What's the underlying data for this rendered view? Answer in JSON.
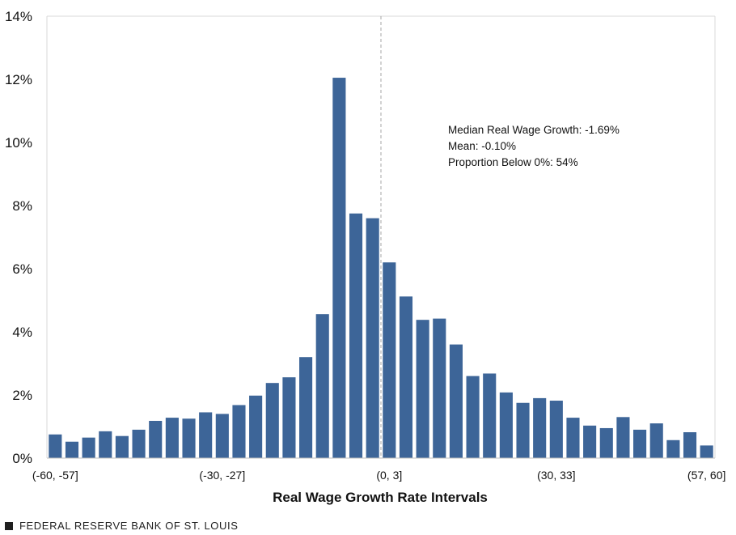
{
  "chart_data": {
    "type": "bar",
    "xlabel": "Real Wage Growth Rate Intervals",
    "ylabel": "",
    "ylim": [
      0,
      14
    ],
    "yticks": [
      "0%",
      "2%",
      "4%",
      "6%",
      "8%",
      "10%",
      "12%",
      "14%"
    ],
    "xtick_labels": [
      {
        "category": 0,
        "label": "(-60, -57]"
      },
      {
        "category": 10,
        "label": "(-30, -27]"
      },
      {
        "category": 20,
        "label": "(0, 3]"
      },
      {
        "category": 30,
        "label": "(30, 33]"
      },
      {
        "category": 39,
        "label": "(57, 60]"
      }
    ],
    "values": [
      0.75,
      0.52,
      0.65,
      0.85,
      0.7,
      0.9,
      1.18,
      1.28,
      1.25,
      1.45,
      1.4,
      1.68,
      1.98,
      2.38,
      2.56,
      3.2,
      4.56,
      12.05,
      7.75,
      7.6,
      6.2,
      5.12,
      4.38,
      4.42,
      3.6,
      2.6,
      2.68,
      2.08,
      1.75,
      1.9,
      1.82,
      1.28,
      1.03,
      0.95,
      1.3,
      0.9,
      1.1,
      0.57,
      0.82,
      0.4
    ],
    "bar_color": "#3d6598",
    "reference_line_x": 0,
    "annotation": [
      "Median Real Wage Growth:  -1.69%",
      "Mean: -0.10%",
      "Proportion  Below 0%:  54%"
    ],
    "grid": false
  },
  "footer": {
    "source": "FEDERAL RESERVE BANK OF ST. LOUIS"
  }
}
